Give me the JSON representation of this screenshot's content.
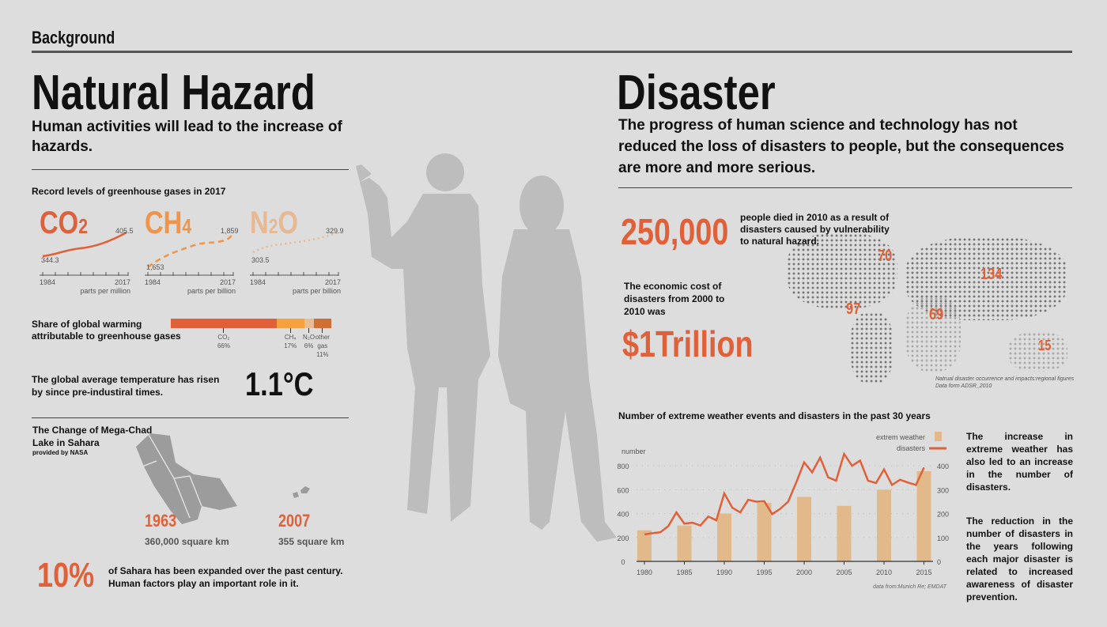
{
  "header": {
    "section": "Background"
  },
  "left": {
    "title": "Natural Hazard",
    "subtitle": "Human activities will lead to the increase of hazards.",
    "gases_heading": "Record levels of greenhouse gases in 2017",
    "gases": [
      {
        "label": "CO",
        "sub": "2",
        "start": "344.3",
        "end": "405.5",
        "from": "1984",
        "to": "2017",
        "unit": "parts per million",
        "color": "#e0603a"
      },
      {
        "label": "CH",
        "sub": "4",
        "start": "1,653",
        "end": "1,859",
        "from": "1984",
        "to": "2017",
        "unit": "parts per billion",
        "color": "#f0944a"
      },
      {
        "label": "N",
        "sub": "2",
        "label2": "O",
        "start": "303.5",
        "end": "329.9",
        "from": "1984",
        "to": "2017",
        "unit": "parts per billion",
        "color": "#e6b992"
      }
    ],
    "share": {
      "label": "Share of global warming attributable to  greenhouse gases",
      "segments": [
        {
          "name": "CO₂",
          "pct": 66,
          "label": "66%",
          "color": "#e0603a"
        },
        {
          "name": "CH₄",
          "pct": 17,
          "label": "17%",
          "color": "#f7a040"
        },
        {
          "name": "N₂O",
          "pct": 6,
          "label": "6%",
          "color": "#e8bd93"
        },
        {
          "name": "other gas",
          "pct": 11,
          "label": "11%",
          "color": "#cf6f36"
        }
      ]
    },
    "temperature": {
      "text": "The global average temperature has risen by since pre-industiral times.",
      "value": "1.1°C"
    },
    "lake": {
      "title": "The Change of Mega-Chad Lake in Sahara",
      "credit": "provided by NASA",
      "y1": "1963",
      "a1": "360,000 square km",
      "y2": "2007",
      "a2": "355 square km"
    },
    "sahara": {
      "value": "10%",
      "text": "of Sahara has been expanded over the  past century. Human factors play an important role in it."
    }
  },
  "right": {
    "title": "Disaster",
    "subtitle": "The progress of human science and technology has not reduced the loss of disasters to people, but the consequences are more and more serious.",
    "deaths": {
      "value": "250,000",
      "text": "people died in 2010 as a result of disasters caused by vulnerability to natural hazard."
    },
    "cost": {
      "text": "The economic cost of disasters from 2000 to 2010 was",
      "value": "$1Trillion"
    },
    "map": {
      "regions": [
        {
          "name": "North America",
          "value": "70"
        },
        {
          "name": "South America",
          "value": "97"
        },
        {
          "name": "Africa",
          "value": "69"
        },
        {
          "name": "Asia",
          "value": "134"
        },
        {
          "name": "Oceania",
          "value": "15"
        }
      ],
      "source1": "Natrual disaster occurrence and impacts:regional figures",
      "source2": "Data form ADSR_2010"
    },
    "note1": "The increase in extreme weather has also led to an increase in the number of disasters.",
    "note2": "The reduction in the number of disasters in the years following each major disaster is related to increased awareness of disaster prevention."
  },
  "chart_data": {
    "type": "bar+line",
    "title": "Number of extreme weather events and  disasters in the past 30 years",
    "ylabel": "number",
    "ylim": [
      0,
      800
    ],
    "y2lim": [
      0,
      400
    ],
    "yticks": [
      "0",
      "200",
      "400",
      "600",
      "800"
    ],
    "y2ticks": [
      "0",
      "100",
      "200",
      "300",
      "400"
    ],
    "xticks": [
      "1980",
      "1985",
      "1990",
      "1995",
      "2000",
      "2005",
      "2010",
      "2015"
    ],
    "legend": {
      "bars": "extrem weather",
      "line": "disasters",
      "position": "top-right"
    },
    "series": [
      {
        "name": "extrem weather",
        "type": "bar",
        "axis": "left",
        "x": [
          1980,
          1985,
          1990,
          1995,
          2000,
          2005,
          2010,
          2015
        ],
        "values": [
          260,
          300,
          400,
          490,
          540,
          465,
          600,
          755
        ],
        "color": "#e2b98a"
      },
      {
        "name": "disasters",
        "type": "line",
        "axis": "right",
        "x": [
          1980,
          1981,
          1982,
          1983,
          1984,
          1985,
          1986,
          1987,
          1988,
          1989,
          1990,
          1991,
          1992,
          1993,
          1994,
          1995,
          1996,
          1997,
          1998,
          1999,
          2000,
          2001,
          2002,
          2003,
          2004,
          2005,
          2006,
          2007,
          2008,
          2009,
          2010,
          2011,
          2012,
          2013,
          2014,
          2015
        ],
        "values": [
          113,
          118,
          122,
          148,
          205,
          158,
          162,
          150,
          188,
          172,
          285,
          225,
          205,
          258,
          250,
          252,
          198,
          220,
          250,
          330,
          415,
          373,
          435,
          352,
          338,
          450,
          400,
          422,
          338,
          328,
          385,
          320,
          342,
          330,
          320,
          393
        ],
        "color": "#e0603a"
      }
    ],
    "source": "data from:Munich Re; EMDAT"
  }
}
